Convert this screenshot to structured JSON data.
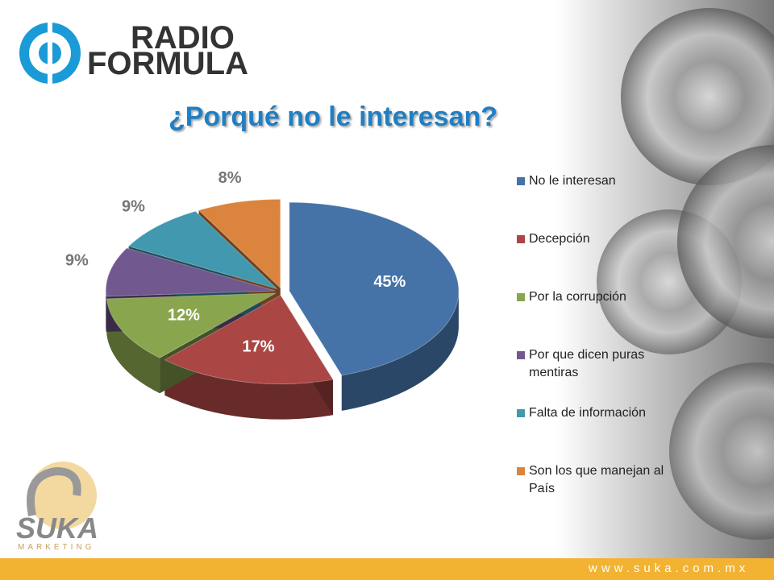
{
  "header": {
    "logo_line1": "RADIO",
    "logo_line2": "FORMULA"
  },
  "chart_data": {
    "type": "pie3d",
    "title": "¿Porqué no le interesan?",
    "categories": [
      "No le interesan",
      "Decepción",
      "Por la corrupción",
      "Por que dicen puras mentiras",
      "Falta de información",
      "Son los que manejan al País"
    ],
    "values": [
      45,
      17,
      12,
      9,
      9,
      8
    ],
    "value_labels": [
      "45%",
      "17%",
      "12%",
      "9%",
      "9%",
      "8%"
    ],
    "colors": [
      "#4572a7",
      "#aa4643",
      "#89a54e",
      "#71588f",
      "#4198af",
      "#db843d"
    ],
    "legend": "right"
  },
  "footer": {
    "brand": "SUKA",
    "tagline": "MARKETING",
    "url": "www.suka.com.mx"
  }
}
